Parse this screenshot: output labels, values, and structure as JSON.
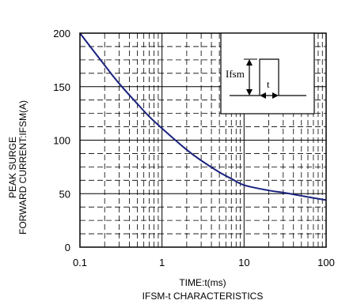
{
  "chart_data": {
    "type": "line",
    "title": "IFSM-t CHARACTERISTICS",
    "xlabel": "TIME:t(ms)",
    "ylabel_lines": [
      "PEAK SURGE",
      "FORWARD CURRENT:IFSM(A)"
    ],
    "x_scale": "log",
    "xlim": [
      0.1,
      100
    ],
    "ylim": [
      0,
      200
    ],
    "x_ticks": [
      {
        "value": 0.1,
        "label": "0.1"
      },
      {
        "value": 1,
        "label": "1"
      },
      {
        "value": 10,
        "label": "10"
      },
      {
        "value": 100,
        "label": "100"
      }
    ],
    "y_ticks": [
      {
        "value": 0,
        "label": "0"
      },
      {
        "value": 50,
        "label": "50"
      },
      {
        "value": 100,
        "label": "100"
      },
      {
        "value": 150,
        "label": "150"
      },
      {
        "value": 200,
        "label": "200"
      }
    ],
    "grid": true,
    "line_color": "#1a237e",
    "series": [
      {
        "x": [
          0.1,
          0.2,
          0.3,
          0.5,
          0.7,
          1,
          2,
          3,
          5,
          7,
          10,
          20,
          30,
          50,
          70,
          100
        ],
        "y": [
          200,
          170,
          153,
          134,
          122,
          111,
          91,
          81,
          70,
          64,
          58,
          53,
          51,
          48,
          46,
          44
        ]
      }
    ],
    "inset": {
      "label_current": "Ifsm",
      "label_time": "t"
    }
  }
}
